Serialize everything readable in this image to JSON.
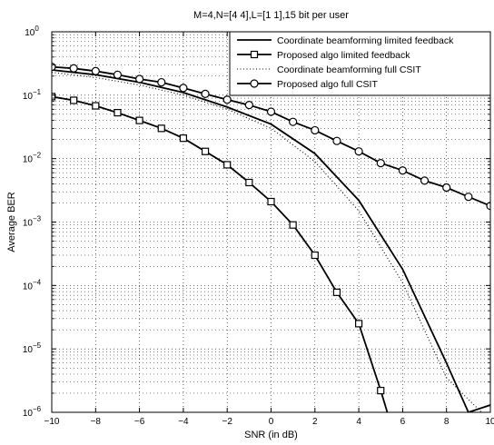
{
  "chart_data": {
    "type": "line",
    "title": "M=4,N=[4 4],L=[1 1],15 bit per user",
    "xlabel": "SNR (in dB)",
    "ylabel": "Average BER",
    "xlim": [
      -10,
      10
    ],
    "ylim": [
      1e-06,
      1
    ],
    "yscale": "log",
    "grid": true,
    "legend_position": "top-right",
    "x_ticks": [
      "−10",
      "−8",
      "−6",
      "−4",
      "−2",
      "0",
      "2",
      "4",
      "6",
      "8",
      "10"
    ],
    "y_ticks": [
      {
        "base": "10",
        "exp": "0"
      },
      {
        "base": "10",
        "exp": "−1"
      },
      {
        "base": "10",
        "exp": "−2"
      },
      {
        "base": "10",
        "exp": "−3"
      },
      {
        "base": "10",
        "exp": "−4"
      },
      {
        "base": "10",
        "exp": "−5"
      },
      {
        "base": "10",
        "exp": "−6"
      }
    ],
    "series": [
      {
        "name": "Coordinate beamforming limited feedback",
        "style": "solid",
        "marker": "none",
        "x": [
          -10,
          -8,
          -6,
          -4,
          -2,
          0,
          2,
          4,
          6,
          8,
          9,
          10
        ],
        "y": [
          0.25,
          0.21,
          0.16,
          0.11,
          0.065,
          0.035,
          0.012,
          0.0022,
          0.00018,
          6e-06,
          1e-06,
          1.3e-06
        ]
      },
      {
        "name": "Proposed algo limited feedback",
        "style": "solid",
        "marker": "square",
        "x": [
          -10,
          -9,
          -8,
          -7,
          -6,
          -5,
          -4,
          -3,
          -2,
          -1,
          0,
          1,
          2,
          3,
          4,
          5,
          5.3
        ],
        "y": [
          0.095,
          0.083,
          0.068,
          0.053,
          0.04,
          0.03,
          0.021,
          0.013,
          0.008,
          0.0042,
          0.0021,
          0.0009,
          0.0003,
          7.8e-05,
          2.5e-05,
          2.2e-06,
          1e-06
        ]
      },
      {
        "name": "Coordinate beamforming full CSIT",
        "style": "dotted",
        "marker": "none",
        "x": [
          -10,
          -8,
          -6,
          -4,
          -2,
          0,
          2,
          4,
          6,
          8,
          9.6
        ],
        "y": [
          0.23,
          0.19,
          0.145,
          0.1,
          0.06,
          0.03,
          0.009,
          0.0015,
          0.00011,
          3.5e-06,
          1e-06
        ]
      },
      {
        "name": "Proposed algo full CSIT",
        "style": "solid",
        "marker": "circle",
        "x": [
          -10,
          -9,
          -8,
          -7,
          -6,
          -5,
          -4,
          -3,
          -2,
          -1,
          0,
          1,
          2,
          3,
          4,
          5,
          6,
          7,
          8,
          9,
          10
        ],
        "y": [
          0.28,
          0.265,
          0.24,
          0.21,
          0.18,
          0.16,
          0.13,
          0.105,
          0.085,
          0.07,
          0.055,
          0.038,
          0.028,
          0.019,
          0.013,
          0.0085,
          0.0065,
          0.0045,
          0.0035,
          0.0025,
          0.0018
        ]
      }
    ]
  }
}
